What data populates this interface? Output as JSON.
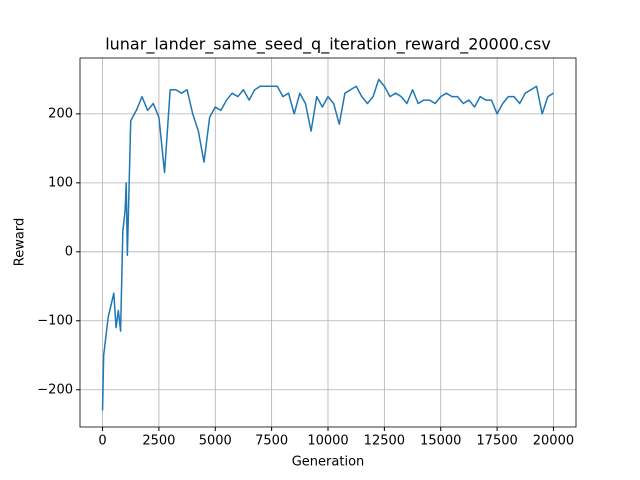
{
  "chart_data": {
    "type": "line",
    "title": "lunar_lander_same_seed_q_iteration_reward_20000.csv",
    "x_label": "Generation",
    "y_label": "Reward",
    "x": [
      0,
      50,
      250,
      500,
      600,
      700,
      800,
      900,
      1000,
      1050,
      1100,
      1250,
      1500,
      1750,
      2000,
      2250,
      2500,
      2750,
      3000,
      3250,
      3500,
      3750,
      4000,
      4250,
      4500,
      4750,
      5000,
      5250,
      5500,
      5750,
      6000,
      6250,
      6500,
      6750,
      7000,
      7250,
      7500,
      7750,
      8000,
      8250,
      8500,
      8750,
      9000,
      9250,
      9500,
      9750,
      10000,
      10250,
      10500,
      10750,
      11000,
      11250,
      11500,
      11750,
      12000,
      12250,
      12500,
      12750,
      13000,
      13250,
      13500,
      13750,
      14000,
      14250,
      14500,
      14750,
      15000,
      15250,
      15500,
      15750,
      16000,
      16250,
      16500,
      16750,
      17000,
      17250,
      17500,
      17750,
      18000,
      18250,
      18500,
      18750,
      19000,
      19250,
      19500,
      19750,
      20000
    ],
    "series": [
      {
        "name": "Reward",
        "color": "#1f77b4",
        "values": [
          -230,
          -150,
          -95,
          -60,
          -110,
          -85,
          -115,
          30,
          60,
          100,
          -5,
          190,
          205,
          225,
          205,
          215,
          195,
          115,
          235,
          235,
          230,
          235,
          200,
          175,
          130,
          195,
          210,
          205,
          220,
          230,
          225,
          235,
          220,
          235,
          240,
          240,
          240,
          240,
          225,
          230,
          200,
          230,
          215,
          175,
          225,
          210,
          225,
          215,
          185,
          230,
          235,
          240,
          225,
          215,
          225,
          250,
          240,
          225,
          230,
          225,
          215,
          235,
          215,
          220,
          220,
          215,
          225,
          230,
          225,
          225,
          215,
          220,
          210,
          225,
          220,
          220,
          200,
          215,
          225,
          225,
          215,
          230,
          235,
          240,
          200,
          225,
          230
        ]
      }
    ],
    "xlim": [
      -1000,
      21000
    ],
    "ylim": [
      -254,
      281
    ],
    "xticks": [
      0,
      2500,
      5000,
      7500,
      10000,
      12500,
      15000,
      17500,
      20000
    ],
    "yticks": [
      {
        "value": -200,
        "label": "−200"
      },
      {
        "value": -100,
        "label": "−100"
      },
      0,
      100,
      200
    ],
    "grid": true
  }
}
